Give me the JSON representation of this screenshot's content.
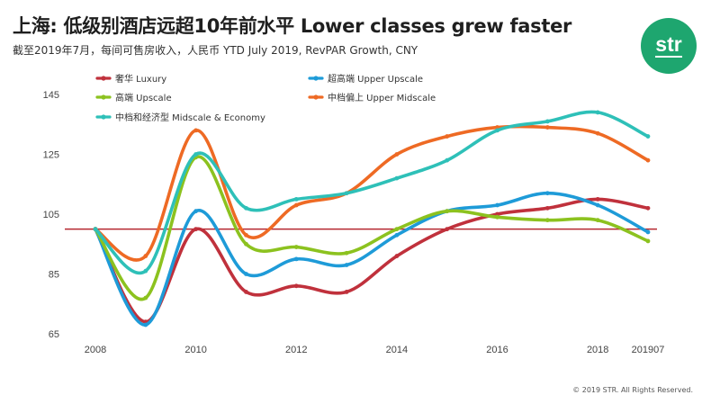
{
  "header": {
    "title": "上海: 低级别酒店远超10年前水平 Lower classes grew faster",
    "subtitle": "截至2019年7月，每间可售房收入，人民币  YTD July  2019, RevPAR Growth, CNY"
  },
  "logo": {
    "text": "str",
    "color": "#1ea66f"
  },
  "footer": {
    "copyright": "© 2019 STR. All Rights Reserved."
  },
  "chart_data": {
    "type": "line",
    "title": "",
    "xlabel": "",
    "ylabel": "",
    "x": [
      "2008",
      "2009",
      "2010",
      "2011",
      "2012",
      "2013",
      "2014",
      "2015",
      "2016",
      "2017",
      "2018",
      "201907"
    ],
    "x_tick_labels": [
      "2008",
      "",
      "2010",
      "",
      "2012",
      "",
      "2014",
      "",
      "2016",
      "",
      "2018",
      "201907"
    ],
    "y_ticks": [
      65,
      85,
      105,
      125,
      145
    ],
    "ylim": [
      65,
      150
    ],
    "grid": false,
    "legend_position": "top-left",
    "reference_line": {
      "value": 100,
      "color": "#b5262f"
    },
    "series": [
      {
        "name": "奢华 Luxury",
        "color": "#c0313c",
        "values": [
          100,
          69,
          100,
          79,
          81,
          79,
          91,
          100,
          105,
          107,
          110,
          107
        ]
      },
      {
        "name": "超高端 Upper Upscale",
        "color": "#1e9bd8",
        "values": [
          100,
          68,
          106,
          85,
          90,
          88,
          98,
          106,
          108,
          112,
          108,
          99
        ]
      },
      {
        "name": "高端 Upscale",
        "color": "#8cc21f",
        "values": [
          100,
          77,
          124,
          95,
          94,
          92,
          100,
          106,
          104,
          103,
          103,
          96
        ]
      },
      {
        "name": "中档偏上 Upper Midscale",
        "color": "#ee6a24",
        "values": [
          100,
          91,
          133,
          98,
          108,
          112,
          125,
          131,
          134,
          134,
          132,
          123
        ]
      },
      {
        "name": "中档和经济型 Midscale & Economy",
        "color": "#2ec0b8",
        "values": [
          100,
          86,
          125,
          107,
          110,
          112,
          117,
          123,
          133,
          136,
          139,
          131
        ]
      }
    ]
  }
}
